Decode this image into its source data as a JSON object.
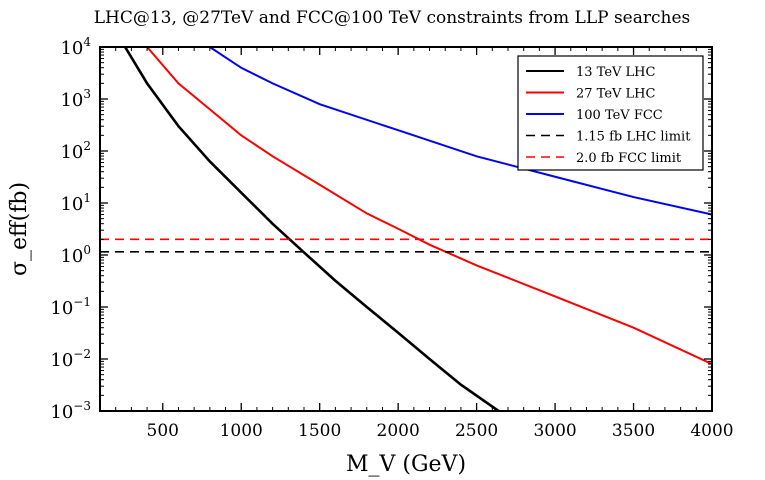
{
  "chart_data": {
    "type": "line",
    "title": "LHC@13, @27TeV and FCC@100 TeV constraints from LLP searches",
    "xlabel": "M_V (GeV)",
    "ylabel": "σ_eff(fb)",
    "xlim": [
      100,
      4000
    ],
    "ylim": [
      0.001,
      10000
    ],
    "yscale": "log",
    "x_ticks": [
      500,
      1000,
      1500,
      2000,
      2500,
      3000,
      3500,
      4000
    ],
    "y_ticks": [
      {
        "value": 0.001,
        "base": "10",
        "exp": "−3"
      },
      {
        "value": 0.01,
        "base": "10",
        "exp": "−2"
      },
      {
        "value": 0.1,
        "base": "10",
        "exp": "−1"
      },
      {
        "value": 1,
        "base": "10",
        "exp": "0"
      },
      {
        "value": 10,
        "base": "10",
        "exp": "1"
      },
      {
        "value": 100,
        "base": "10",
        "exp": "2"
      },
      {
        "value": 1000,
        "base": "10",
        "exp": "3"
      },
      {
        "value": 10000,
        "base": "10",
        "exp": "4"
      }
    ],
    "legend_position": "top-right",
    "series": [
      {
        "name": "13 TeV LHC",
        "color": "#000000",
        "style": "solid",
        "x": [
          260,
          400,
          600,
          800,
          1000,
          1200,
          1400,
          1600,
          1800,
          2000,
          2200,
          2400,
          2640
        ],
        "y": [
          10000,
          2000,
          300,
          63,
          15.8,
          3.98,
          1.12,
          0.32,
          0.1,
          0.032,
          0.01,
          0.0032,
          0.001
        ]
      },
      {
        "name": "27 TeV LHC",
        "color": "#ff0000",
        "style": "solid",
        "x": [
          400,
          600,
          800,
          1000,
          1200,
          1500,
          1800,
          2000,
          2200,
          2500,
          3000,
          3500,
          4000
        ],
        "y": [
          10000,
          2000,
          631,
          200,
          79,
          22.4,
          6.3,
          3.2,
          1.58,
          0.63,
          0.16,
          0.04,
          0.008
        ]
      },
      {
        "name": "100 TeV FCC",
        "color": "#0000ff",
        "style": "solid",
        "x": [
          800,
          1000,
          1200,
          1500,
          2000,
          2500,
          3000,
          3500,
          4000
        ],
        "y": [
          10000,
          3981,
          1995,
          794,
          251,
          79,
          32,
          13,
          6
        ]
      },
      {
        "name": "1.15 fb LHC limit",
        "color": "#000000",
        "style": "dashed",
        "x": [
          100,
          4000
        ],
        "y": [
          1.15,
          1.15
        ]
      },
      {
        "name": "2.0 fb FCC limit",
        "color": "#ff0000",
        "style": "dashed",
        "x": [
          100,
          4000
        ],
        "y": [
          2.0,
          2.0
        ]
      }
    ]
  }
}
